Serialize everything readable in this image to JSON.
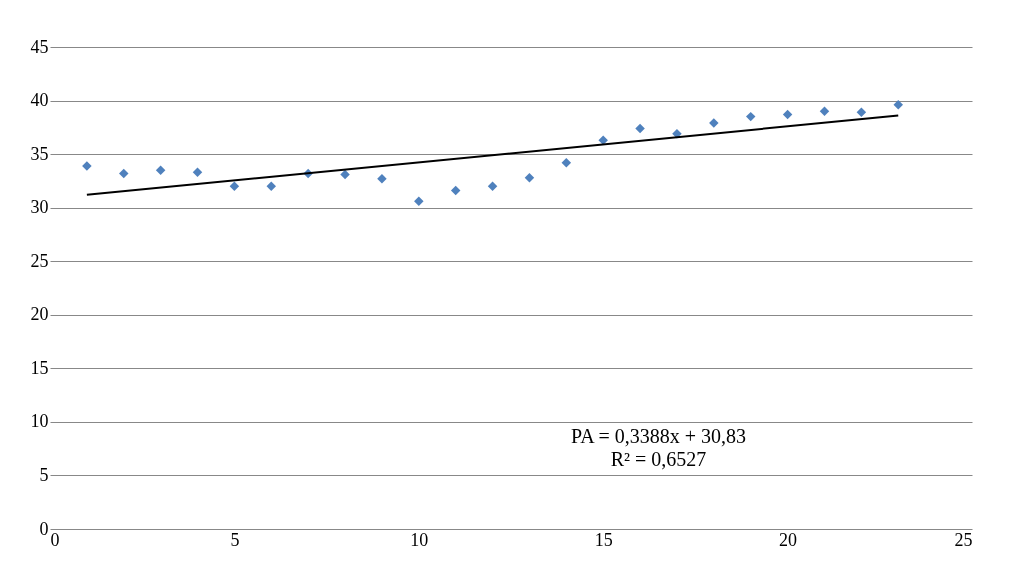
{
  "chart_data": {
    "type": "scatter",
    "xlim": [
      0,
      25
    ],
    "xticks": [
      0,
      5,
      10,
      15,
      20,
      25
    ],
    "ylim": [
      0,
      45
    ],
    "yticks": [
      0,
      5,
      10,
      15,
      20,
      25,
      30,
      35,
      40,
      45
    ],
    "grid": "y",
    "marker": "diamond",
    "series": [
      {
        "color": "#4f81bd",
        "x": [
          1,
          2,
          3,
          4,
          5,
          6,
          7,
          8,
          9,
          10,
          11,
          12,
          13,
          14,
          15,
          16,
          17,
          18,
          19,
          20,
          21,
          22,
          23
        ],
        "values": [
          33.9,
          33.2,
          33.5,
          33.3,
          32.0,
          32.0,
          33.2,
          33.1,
          32.7,
          30.6,
          31.6,
          32.0,
          32.8,
          34.2,
          36.3,
          37.4,
          36.9,
          37.9,
          38.5,
          38.7,
          39.0,
          38.9,
          39.6
        ]
      },
      {
        "type": "line",
        "color": "#000000",
        "marker": "none",
        "line_style": "solid",
        "x": [
          1,
          23
        ],
        "values": [
          31.2,
          38.6
        ]
      }
    ],
    "annotations": [
      "PA = 0,3388x + 30,83",
      "R² = 0,6527"
    ]
  }
}
